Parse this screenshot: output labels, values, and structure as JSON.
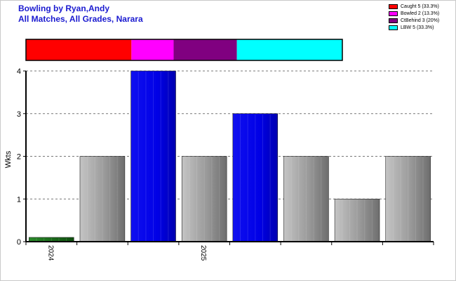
{
  "titles": [
    "Bowling by Ryan,Andy",
    "All Matches, All Grades, Narara"
  ],
  "legend": [
    {
      "label": "Caught 5 (33.3%)",
      "color": "#ff0000"
    },
    {
      "label": "Bowled 2 (13.3%)",
      "color": "#ff00ff"
    },
    {
      "label": "CtBehind 3 (20%)",
      "color": "#800080"
    },
    {
      "label": "LBW 5 (33.3%)",
      "color": "#00ffff"
    }
  ],
  "chart_data": [
    {
      "type": "bar",
      "stacked_percent": true,
      "segments": [
        {
          "name": "Caught",
          "value": 5,
          "percent": 33.3,
          "color": "#ff0000"
        },
        {
          "name": "Bowled",
          "value": 2,
          "percent": 13.3,
          "color": "#ff00ff"
        },
        {
          "name": "CtBehind",
          "value": 3,
          "percent": 20,
          "color": "#800080"
        },
        {
          "name": "LBW",
          "value": 5,
          "percent": 33.3,
          "color": "#00ffff"
        }
      ]
    },
    {
      "type": "bar",
      "ylabel": "Wkts",
      "ylim": [
        0,
        4
      ],
      "yticks": [
        0,
        1,
        2,
        3,
        4
      ],
      "grid": true,
      "x_tick_labels": [
        {
          "label": "2024",
          "at_bar": 0
        },
        {
          "label": "2025",
          "at_bar": 3
        }
      ],
      "bars": [
        {
          "value": 0.1,
          "color": "#1a6e1a"
        },
        {
          "value": 2,
          "color": "#999999"
        },
        {
          "value": 4,
          "color": "#0000ee"
        },
        {
          "value": 2,
          "color": "#999999"
        },
        {
          "value": 3,
          "color": "#0000ee"
        },
        {
          "value": 2,
          "color": "#999999"
        },
        {
          "value": 1,
          "color": "#999999"
        },
        {
          "value": 2,
          "color": "#999999"
        }
      ]
    }
  ]
}
